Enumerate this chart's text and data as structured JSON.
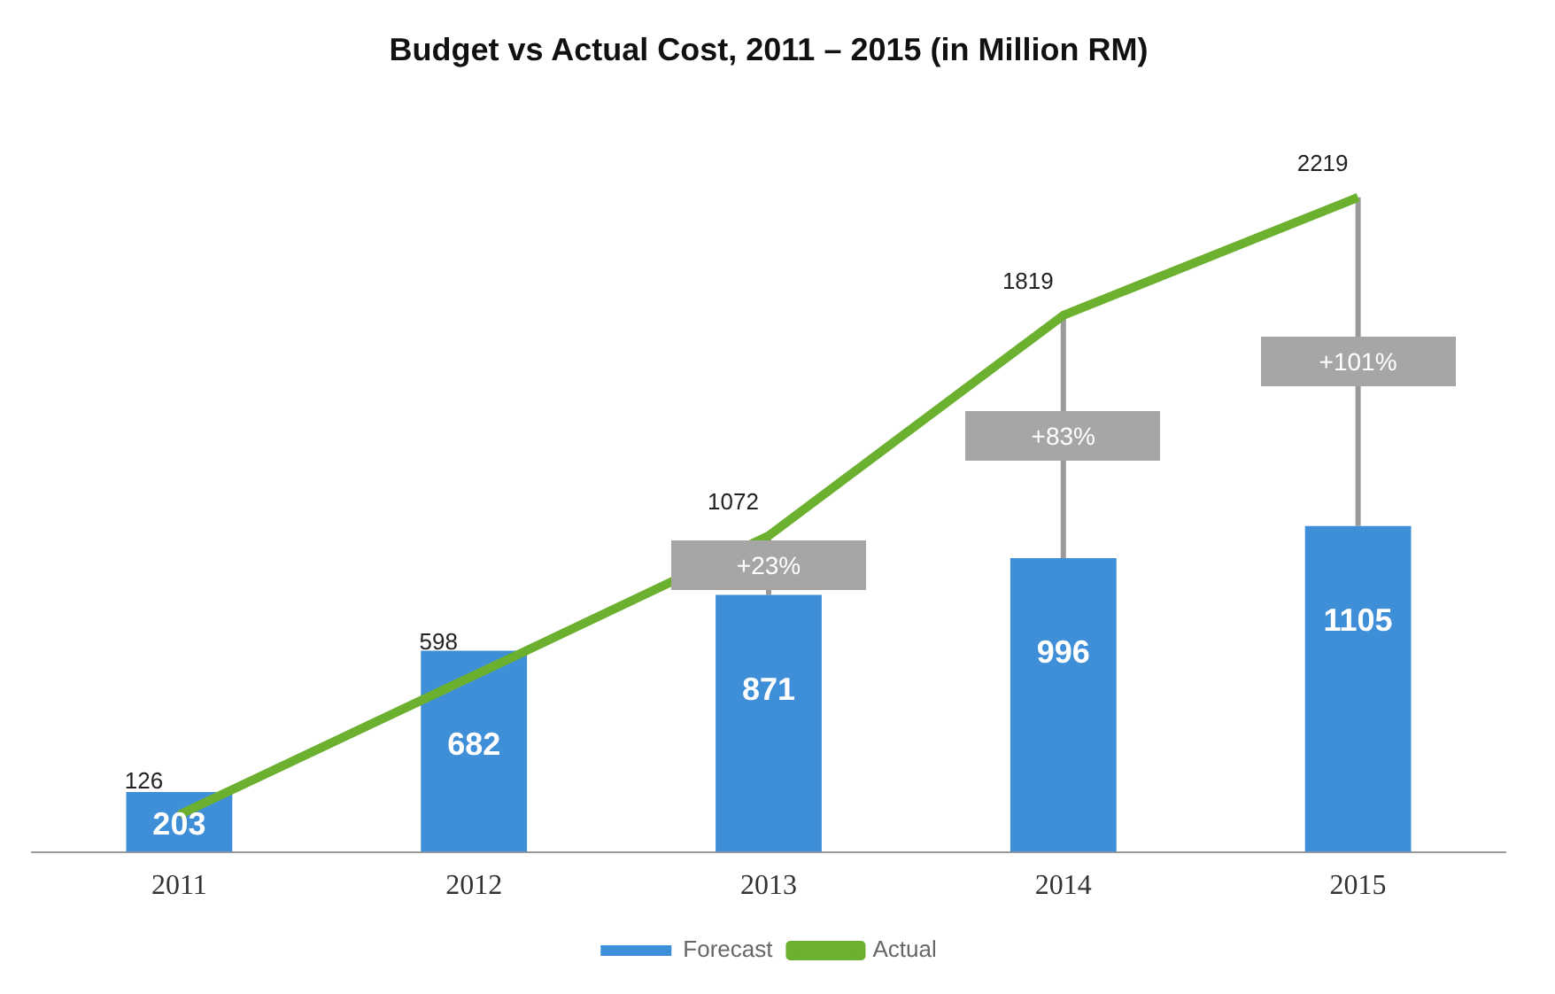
{
  "chart_data": {
    "type": "bar",
    "title": "Budget vs Actual Cost, 2011 – 2015 (in Million RM)",
    "categories": [
      "2011",
      "2012",
      "2013",
      "2014",
      "2015"
    ],
    "series": [
      {
        "name": "Forecast",
        "color": "#3f8fd8",
        "values": [
          203,
          682,
          871,
          996,
          1105
        ]
      },
      {
        "name": "Actual",
        "type": "line",
        "color": "#6bb02e",
        "values": [
          126,
          598,
          1072,
          1819,
          2219
        ]
      }
    ],
    "annotations": [
      "+23%",
      "+83%",
      "+101%"
    ],
    "data_labels": true,
    "legend": "bottom",
    "grid": false,
    "marker": "none"
  }
}
